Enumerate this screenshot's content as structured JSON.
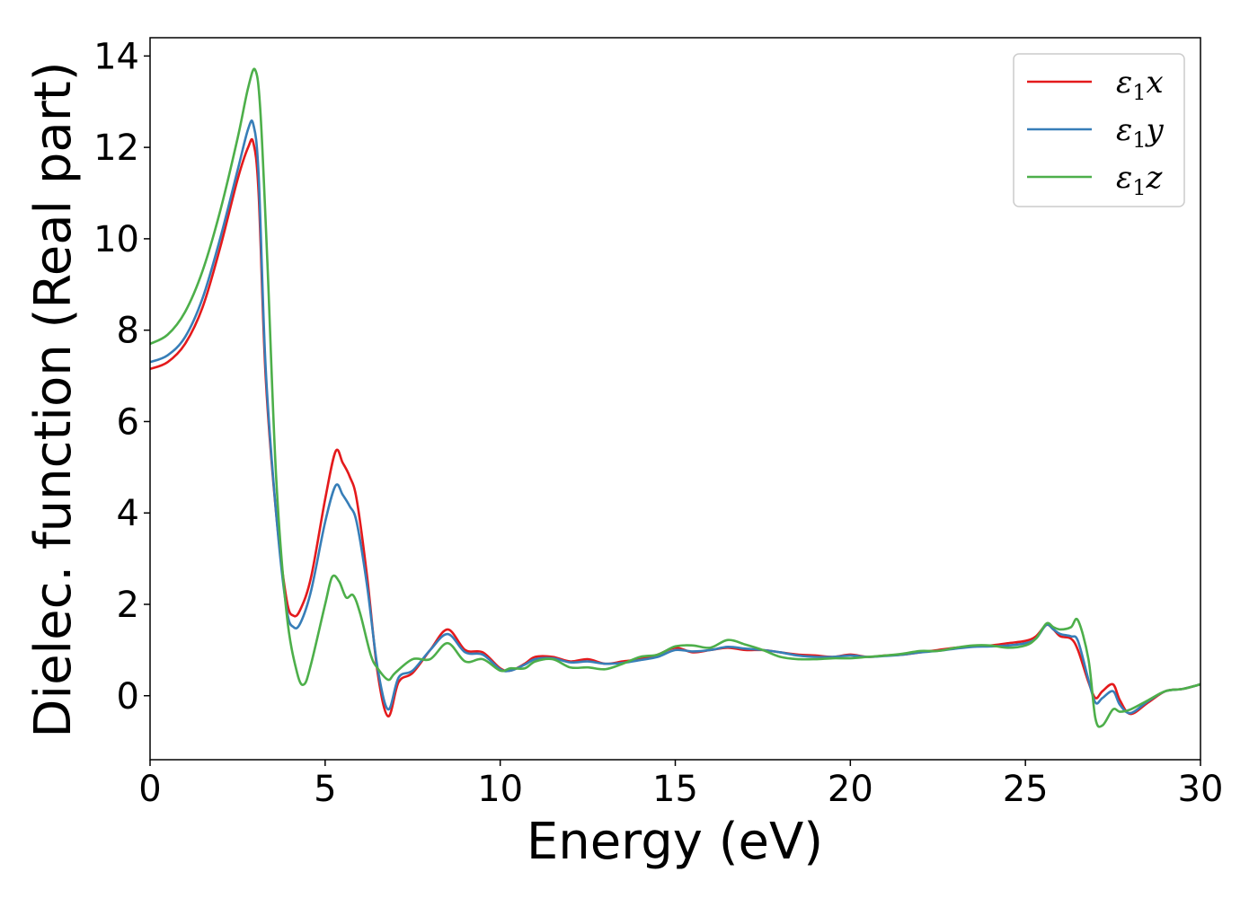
{
  "chart_data": {
    "type": "line",
    "xlabel": "Energy (eV)",
    "ylabel": "Dielec. function (Real part)",
    "xlim": [
      0,
      30
    ],
    "ylim": [
      -1.4,
      14.4
    ],
    "xticks": [
      0,
      5,
      10,
      15,
      20,
      25,
      30
    ],
    "yticks": [
      0,
      2,
      4,
      6,
      8,
      10,
      12,
      14
    ],
    "grid": false,
    "legend_position": "top-right",
    "series": [
      {
        "name": "ε₁x",
        "legend_main": "ε",
        "legend_sub": "1",
        "legend_var": "x",
        "color": "#e41a1c",
        "x": [
          0,
          0.5,
          1.0,
          1.5,
          2.0,
          2.5,
          2.8,
          2.95,
          3.1,
          3.3,
          3.6,
          3.9,
          4.1,
          4.3,
          4.6,
          5.0,
          5.3,
          5.5,
          5.7,
          5.9,
          6.2,
          6.5,
          6.8,
          7.1,
          7.5,
          8.0,
          8.5,
          9.0,
          9.5,
          10.0,
          10.3,
          10.7,
          11.0,
          11.5,
          12.0,
          12.5,
          13.0,
          13.5,
          14.0,
          14.5,
          15.0,
          15.5,
          16.0,
          16.5,
          17.0,
          17.5,
          18.0,
          18.5,
          19.0,
          19.5,
          20.0,
          20.5,
          21.0,
          21.5,
          22.0,
          22.5,
          23.0,
          23.5,
          24.0,
          24.5,
          25.0,
          25.3,
          25.6,
          25.8,
          26.0,
          26.3,
          26.5,
          26.8,
          27.0,
          27.2,
          27.5,
          27.7,
          28.0,
          28.5,
          29.0,
          29.5,
          30.0
        ],
        "y": [
          7.15,
          7.3,
          7.7,
          8.5,
          9.8,
          11.3,
          12.0,
          12.1,
          11.0,
          7.0,
          4.0,
          2.1,
          1.75,
          1.9,
          2.6,
          4.3,
          5.35,
          5.1,
          4.8,
          4.3,
          2.6,
          0.5,
          -0.45,
          0.3,
          0.5,
          1.0,
          1.45,
          1.0,
          0.95,
          0.6,
          0.55,
          0.7,
          0.85,
          0.85,
          0.75,
          0.8,
          0.7,
          0.75,
          0.8,
          0.9,
          1.05,
          0.95,
          1.0,
          1.05,
          1.0,
          1.0,
          0.95,
          0.9,
          0.88,
          0.85,
          0.9,
          0.85,
          0.88,
          0.9,
          0.95,
          1.0,
          1.05,
          1.08,
          1.1,
          1.15,
          1.2,
          1.3,
          1.55,
          1.45,
          1.3,
          1.25,
          1.0,
          0.3,
          -0.05,
          0.1,
          0.25,
          -0.1,
          -0.4,
          -0.15,
          0.1,
          0.15,
          0.25
        ]
      },
      {
        "name": "ε₁y",
        "legend_main": "ε",
        "legend_sub": "1",
        "legend_var": "y",
        "color": "#377eb8",
        "x": [
          0,
          0.5,
          1.0,
          1.5,
          2.0,
          2.5,
          2.8,
          2.95,
          3.1,
          3.3,
          3.6,
          3.9,
          4.1,
          4.3,
          4.6,
          5.0,
          5.3,
          5.5,
          5.7,
          5.9,
          6.2,
          6.5,
          6.8,
          7.1,
          7.5,
          8.0,
          8.5,
          9.0,
          9.5,
          10.0,
          10.3,
          10.7,
          11.0,
          11.5,
          12.0,
          12.5,
          13.0,
          13.5,
          14.0,
          14.5,
          15.0,
          15.5,
          16.0,
          16.5,
          17.0,
          17.5,
          18.0,
          18.5,
          19.0,
          19.5,
          20.0,
          20.5,
          21.0,
          21.5,
          22.0,
          22.5,
          23.0,
          23.5,
          24.0,
          24.5,
          25.0,
          25.3,
          25.6,
          25.8,
          26.0,
          26.3,
          26.5,
          26.8,
          27.0,
          27.2,
          27.5,
          27.7,
          28.0,
          28.5,
          29.0,
          29.5,
          30.0
        ],
        "y": [
          7.3,
          7.45,
          7.85,
          8.7,
          10.0,
          11.5,
          12.4,
          12.5,
          11.4,
          7.2,
          4.0,
          1.9,
          1.5,
          1.6,
          2.3,
          3.8,
          4.6,
          4.4,
          4.15,
          3.8,
          2.4,
          0.6,
          -0.3,
          0.4,
          0.55,
          1.0,
          1.35,
          0.95,
          0.9,
          0.58,
          0.55,
          0.68,
          0.8,
          0.82,
          0.73,
          0.75,
          0.7,
          0.72,
          0.78,
          0.85,
          1.0,
          0.97,
          1.0,
          1.07,
          1.03,
          1.0,
          0.95,
          0.88,
          0.85,
          0.85,
          0.88,
          0.85,
          0.87,
          0.9,
          0.95,
          0.98,
          1.03,
          1.07,
          1.08,
          1.1,
          1.15,
          1.25,
          1.55,
          1.45,
          1.35,
          1.3,
          1.2,
          0.35,
          -0.15,
          -0.05,
          0.1,
          -0.2,
          -0.38,
          -0.12,
          0.1,
          0.15,
          0.25
        ]
      },
      {
        "name": "ε₁z",
        "legend_main": "ε",
        "legend_sub": "1",
        "legend_var": "z",
        "color": "#4daf4a",
        "x": [
          0,
          0.5,
          1.0,
          1.5,
          2.0,
          2.5,
          2.8,
          3.0,
          3.15,
          3.35,
          3.6,
          3.9,
          4.2,
          4.4,
          4.6,
          5.0,
          5.2,
          5.4,
          5.6,
          5.8,
          6.0,
          6.3,
          6.5,
          6.8,
          7.0,
          7.5,
          8.0,
          8.5,
          9.0,
          9.5,
          10.0,
          10.3,
          10.7,
          11.0,
          11.5,
          12.0,
          12.5,
          13.0,
          13.5,
          14.0,
          14.5,
          15.0,
          15.5,
          16.0,
          16.5,
          17.0,
          17.5,
          18.0,
          18.5,
          19.0,
          19.5,
          20.0,
          20.5,
          21.0,
          21.5,
          22.0,
          22.5,
          23.0,
          23.5,
          24.0,
          24.5,
          25.0,
          25.3,
          25.6,
          25.8,
          26.0,
          26.3,
          26.5,
          26.8,
          27.0,
          27.2,
          27.5,
          27.7,
          28.0,
          28.5,
          29.0,
          29.5,
          30.0
        ],
        "y": [
          7.7,
          7.9,
          8.4,
          9.3,
          10.6,
          12.2,
          13.3,
          13.7,
          12.8,
          9.5,
          4.8,
          1.8,
          0.5,
          0.25,
          0.7,
          2.0,
          2.6,
          2.5,
          2.15,
          2.2,
          1.8,
          0.9,
          0.6,
          0.35,
          0.5,
          0.8,
          0.8,
          1.15,
          0.75,
          0.8,
          0.55,
          0.6,
          0.6,
          0.75,
          0.8,
          0.62,
          0.62,
          0.58,
          0.7,
          0.85,
          0.9,
          1.08,
          1.1,
          1.05,
          1.22,
          1.12,
          1.0,
          0.85,
          0.8,
          0.8,
          0.82,
          0.82,
          0.85,
          0.88,
          0.92,
          0.98,
          0.98,
          1.05,
          1.1,
          1.1,
          1.05,
          1.1,
          1.25,
          1.58,
          1.5,
          1.45,
          1.5,
          1.65,
          0.8,
          -0.5,
          -0.65,
          -0.3,
          -0.35,
          -0.3,
          -0.1,
          0.1,
          0.15,
          0.25
        ]
      }
    ]
  }
}
